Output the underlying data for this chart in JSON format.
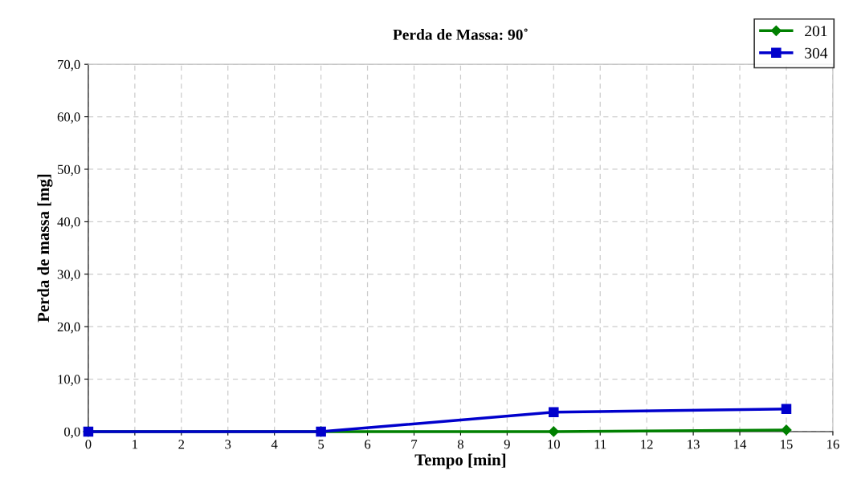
{
  "chart_data": {
    "type": "line",
    "title": "Perda de Massa: 90˚",
    "xlabel": "Tempo [min]",
    "ylabel": "Perda de massa [mg]",
    "x": [
      0,
      5,
      10,
      15
    ],
    "series": [
      {
        "name": "201",
        "color": "#008000",
        "marker": "diamond",
        "values": [
          0,
          0,
          0,
          0.3
        ]
      },
      {
        "name": "304",
        "color": "#0000cc",
        "marker": "square",
        "values": [
          0,
          0,
          3.7,
          4.3
        ]
      }
    ],
    "xlim": [
      0,
      16
    ],
    "xticks": [
      0,
      1,
      2,
      3,
      4,
      5,
      6,
      7,
      8,
      9,
      10,
      11,
      12,
      13,
      14,
      15,
      16
    ],
    "ylim": [
      0,
      70
    ],
    "yticks": [
      {
        "value": 0,
        "label": "0,0"
      },
      {
        "value": 10,
        "label": "10,0"
      },
      {
        "value": 20,
        "label": "20,0"
      },
      {
        "value": 30,
        "label": "30,0"
      },
      {
        "value": 40,
        "label": "40,0"
      },
      {
        "value": 50,
        "label": "50,0"
      },
      {
        "value": 60,
        "label": "60,0"
      },
      {
        "value": 70,
        "label": "70,0"
      }
    ],
    "grid": true,
    "legend": "top right",
    "line_style": "solid"
  }
}
